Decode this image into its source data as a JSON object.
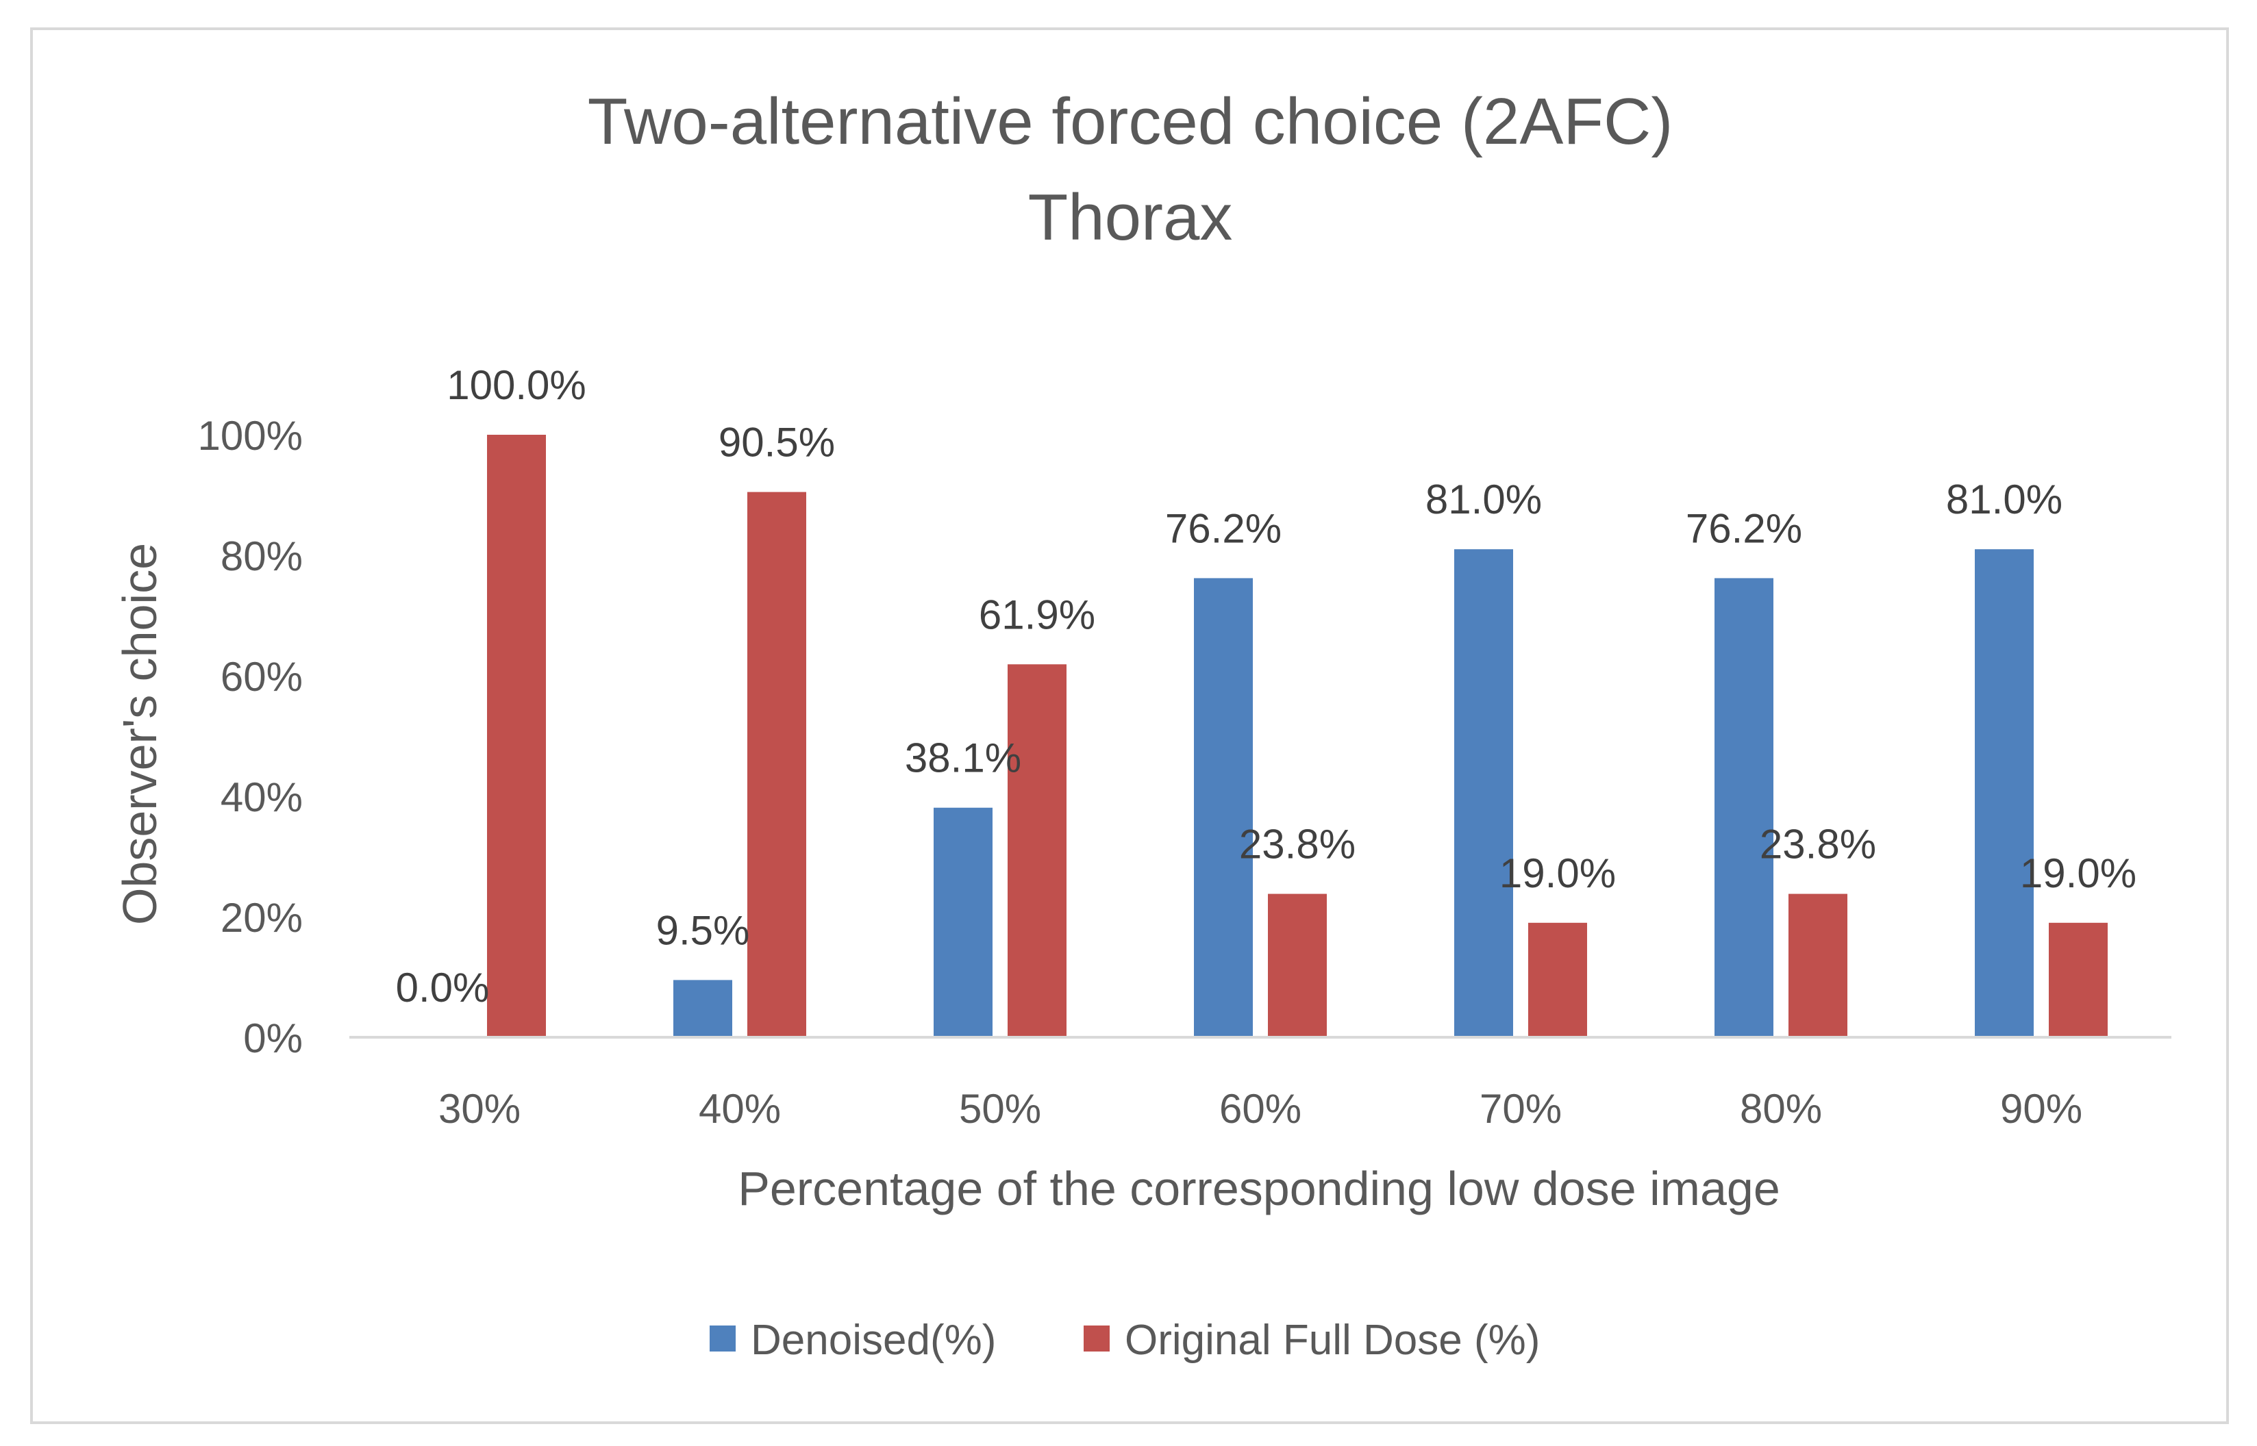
{
  "chart_data": {
    "type": "bar",
    "title_line1": "Two-alternative forced choice (2AFC)",
    "title_line2": "Thorax",
    "xlabel": "Percentage of the corresponding low dose image",
    "ylabel": "Observer's choice",
    "categories": [
      "30%",
      "40%",
      "50%",
      "60%",
      "70%",
      "80%",
      "90%"
    ],
    "ylim": [
      0,
      100
    ],
    "y_ticks": [
      0,
      20,
      40,
      60,
      80,
      100
    ],
    "y_tick_labels": [
      "0%",
      "20%",
      "40%",
      "60%",
      "80%",
      "100%"
    ],
    "grid": false,
    "legend_position": "bottom",
    "series": [
      {
        "name": "Denoised(%)",
        "color": "#4f81bd",
        "values": [
          0.0,
          9.5,
          38.1,
          76.2,
          81.0,
          76.2,
          81.0
        ],
        "labels": [
          "0.0%",
          "9.5%",
          "38.1%",
          "76.2%",
          "81.0%",
          "76.2%",
          "81.0%"
        ]
      },
      {
        "name": "Original Full Dose (%)",
        "color": "#c0504d",
        "values": [
          100.0,
          90.5,
          61.9,
          23.8,
          19.0,
          23.8,
          19.0
        ],
        "labels": [
          "100.0%",
          "90.5%",
          "61.9%",
          "23.8%",
          "19.0%",
          "23.8%",
          "19.0%"
        ]
      }
    ]
  }
}
